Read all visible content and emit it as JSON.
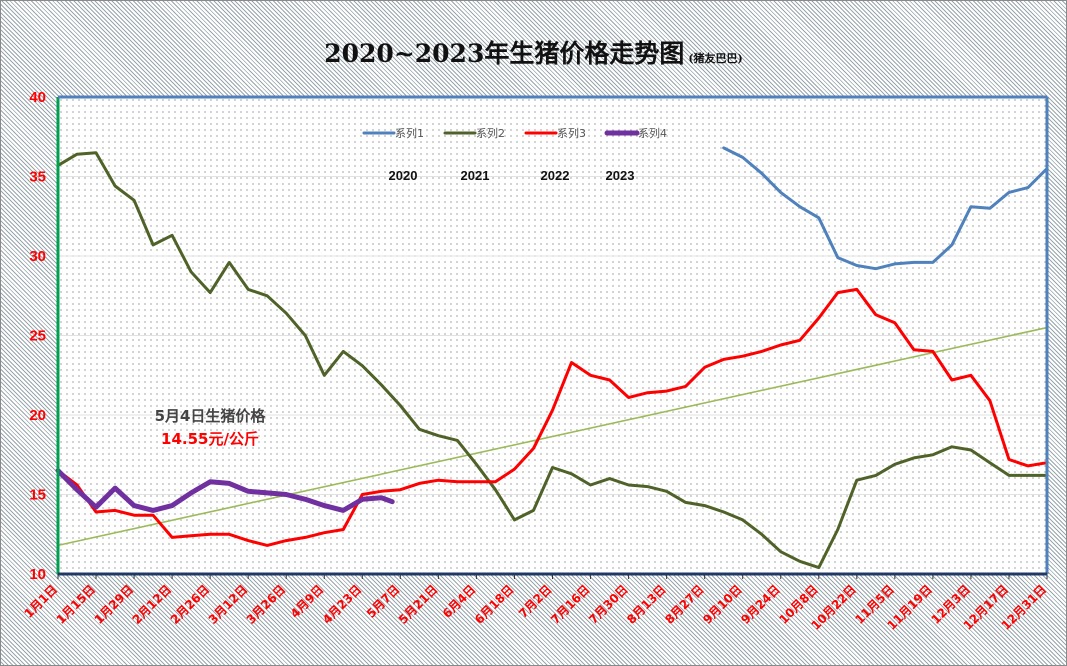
{
  "chart_data": {
    "type": "line",
    "title": "2020~2023年生猪价格走势图",
    "subtitle": "(猪友巴巴)",
    "xlabel": "",
    "ylabel": "",
    "ylim": [
      10,
      40
    ],
    "yticks": [
      "40",
      "35",
      "30",
      "25",
      "20",
      "15",
      "10"
    ],
    "xticks": [
      "1月1日",
      "1月15日",
      "1月29日",
      "2月12日",
      "2月26日",
      "3月12日",
      "3月26日",
      "4月9日",
      "4月23日",
      "5月7日",
      "5月21日",
      "6月4日",
      "6月18日",
      "7月2日",
      "7月16日",
      "7月30日",
      "8月13日",
      "8月27日",
      "9月10日",
      "9月24日",
      "10月8日",
      "10月22日",
      "11月5日",
      "11月19日",
      "12月3日",
      "12月17日",
      "12月31日"
    ],
    "grid": true,
    "legend": {
      "position": "top",
      "year_labels": [
        "2020",
        "2021",
        "2022",
        "2023"
      ]
    },
    "series": [
      {
        "name": "系列1",
        "color": "#4f81bd",
        "width": 3,
        "points": [
          [
            "9/3",
            36.8
          ],
          [
            "9/10",
            36.2
          ],
          [
            "9/17",
            35.2
          ],
          [
            "9/24",
            34.0
          ],
          [
            "10/1",
            33.1
          ],
          [
            "10/8",
            32.4
          ],
          [
            "10/15",
            29.9
          ],
          [
            "10/22",
            29.4
          ],
          [
            "10/29",
            29.2
          ],
          [
            "11/5",
            29.5
          ],
          [
            "11/12",
            29.6
          ],
          [
            "11/19",
            29.6
          ],
          [
            "11/26",
            30.7
          ],
          [
            "12/3",
            33.1
          ],
          [
            "12/10",
            33.0
          ],
          [
            "12/17",
            34.0
          ],
          [
            "12/24",
            34.3
          ],
          [
            "12/31",
            35.5
          ]
        ]
      },
      {
        "name": "系列2",
        "color": "#4f6228",
        "width": 3,
        "points": [
          [
            "1/1",
            35.7
          ],
          [
            "1/8",
            36.4
          ],
          [
            "1/15",
            36.5
          ],
          [
            "1/22",
            34.4
          ],
          [
            "1/29",
            33.5
          ],
          [
            "2/5",
            30.7
          ],
          [
            "2/12",
            31.3
          ],
          [
            "2/19",
            29.0
          ],
          [
            "2/26",
            27.7
          ],
          [
            "3/5",
            29.6
          ],
          [
            "3/12",
            27.9
          ],
          [
            "3/19",
            27.5
          ],
          [
            "3/26",
            26.4
          ],
          [
            "4/2",
            25.0
          ],
          [
            "4/9",
            22.5
          ],
          [
            "4/16",
            24.0
          ],
          [
            "4/23",
            23.1
          ],
          [
            "4/30",
            21.9
          ],
          [
            "5/7",
            20.6
          ],
          [
            "5/14",
            19.1
          ],
          [
            "5/21",
            18.7
          ],
          [
            "5/28",
            18.4
          ],
          [
            "6/4",
            16.9
          ],
          [
            "6/11",
            15.3
          ],
          [
            "6/18",
            13.4
          ],
          [
            "6/25",
            14.0
          ],
          [
            "7/2",
            16.7
          ],
          [
            "7/9",
            16.3
          ],
          [
            "7/16",
            15.6
          ],
          [
            "7/23",
            16.0
          ],
          [
            "7/30",
            15.6
          ],
          [
            "8/6",
            15.5
          ],
          [
            "8/13",
            15.2
          ],
          [
            "8/20",
            14.5
          ],
          [
            "8/27",
            14.3
          ],
          [
            "9/3",
            13.9
          ],
          [
            "9/10",
            13.4
          ],
          [
            "9/17",
            12.5
          ],
          [
            "9/24",
            11.4
          ],
          [
            "10/1",
            10.8
          ],
          [
            "10/8",
            10.4
          ],
          [
            "10/15",
            12.8
          ],
          [
            "10/22",
            15.9
          ],
          [
            "10/29",
            16.2
          ],
          [
            "11/5",
            16.9
          ],
          [
            "11/12",
            17.3
          ],
          [
            "11/19",
            17.5
          ],
          [
            "11/26",
            18.0
          ],
          [
            "12/3",
            17.8
          ],
          [
            "12/10",
            17.0
          ],
          [
            "12/17",
            16.2
          ],
          [
            "12/24",
            16.2
          ],
          [
            "12/31",
            16.2
          ]
        ]
      },
      {
        "name": "系列3",
        "color": "#ff0000",
        "width": 3,
        "points": [
          [
            "1/1",
            16.5
          ],
          [
            "1/8",
            15.6
          ],
          [
            "1/15",
            13.9
          ],
          [
            "1/22",
            14.0
          ],
          [
            "1/29",
            13.7
          ],
          [
            "2/5",
            13.7
          ],
          [
            "2/12",
            12.3
          ],
          [
            "2/19",
            12.4
          ],
          [
            "2/26",
            12.5
          ],
          [
            "3/5",
            12.5
          ],
          [
            "3/12",
            12.1
          ],
          [
            "3/19",
            11.8
          ],
          [
            "3/26",
            12.1
          ],
          [
            "4/2",
            12.3
          ],
          [
            "4/9",
            12.6
          ],
          [
            "4/16",
            12.8
          ],
          [
            "4/23",
            15.0
          ],
          [
            "4/30",
            15.2
          ],
          [
            "5/7",
            15.3
          ],
          [
            "5/14",
            15.7
          ],
          [
            "5/21",
            15.9
          ],
          [
            "5/28",
            15.8
          ],
          [
            "6/4",
            15.8
          ],
          [
            "6/11",
            15.8
          ],
          [
            "6/18",
            16.6
          ],
          [
            "6/25",
            17.9
          ],
          [
            "7/2",
            20.3
          ],
          [
            "7/9",
            23.3
          ],
          [
            "7/16",
            22.5
          ],
          [
            "7/23",
            22.2
          ],
          [
            "7/30",
            21.1
          ],
          [
            "8/6",
            21.4
          ],
          [
            "8/13",
            21.5
          ],
          [
            "8/20",
            21.8
          ],
          [
            "8/27",
            23.0
          ],
          [
            "9/3",
            23.5
          ],
          [
            "9/10",
            23.7
          ],
          [
            "9/17",
            24.0
          ],
          [
            "9/24",
            24.4
          ],
          [
            "10/1",
            24.7
          ],
          [
            "10/8",
            26.1
          ],
          [
            "10/15",
            27.7
          ],
          [
            "10/22",
            27.9
          ],
          [
            "10/29",
            26.3
          ],
          [
            "11/5",
            25.8
          ],
          [
            "11/12",
            24.1
          ],
          [
            "11/19",
            24.0
          ],
          [
            "11/26",
            22.2
          ],
          [
            "12/3",
            22.5
          ],
          [
            "12/10",
            20.9
          ],
          [
            "12/17",
            17.2
          ],
          [
            "12/24",
            16.8
          ],
          [
            "12/31",
            17.0
          ]
        ]
      },
      {
        "name": "系列4",
        "color": "#7030a0",
        "width": 5,
        "points": [
          [
            "1/1",
            16.5
          ],
          [
            "1/8",
            15.3
          ],
          [
            "1/15",
            14.2
          ],
          [
            "1/22",
            15.4
          ],
          [
            "1/29",
            14.3
          ],
          [
            "2/5",
            14.0
          ],
          [
            "2/12",
            14.3
          ],
          [
            "2/19",
            15.1
          ],
          [
            "2/26",
            15.8
          ],
          [
            "3/5",
            15.7
          ],
          [
            "3/12",
            15.2
          ],
          [
            "3/19",
            15.1
          ],
          [
            "3/26",
            15.0
          ],
          [
            "4/2",
            14.7
          ],
          [
            "4/9",
            14.3
          ],
          [
            "4/16",
            14.0
          ],
          [
            "4/23",
            14.7
          ],
          [
            "4/30",
            14.8
          ],
          [
            "5/4",
            14.55
          ]
        ]
      }
    ],
    "trendline": {
      "color": "#9bbb59",
      "start": [
        "1/1",
        11.8
      ],
      "end": [
        "12/31",
        25.5
      ]
    },
    "annotation": {
      "line1": "5月4日生猪价格",
      "line2": "14.55元/公斤"
    }
  }
}
